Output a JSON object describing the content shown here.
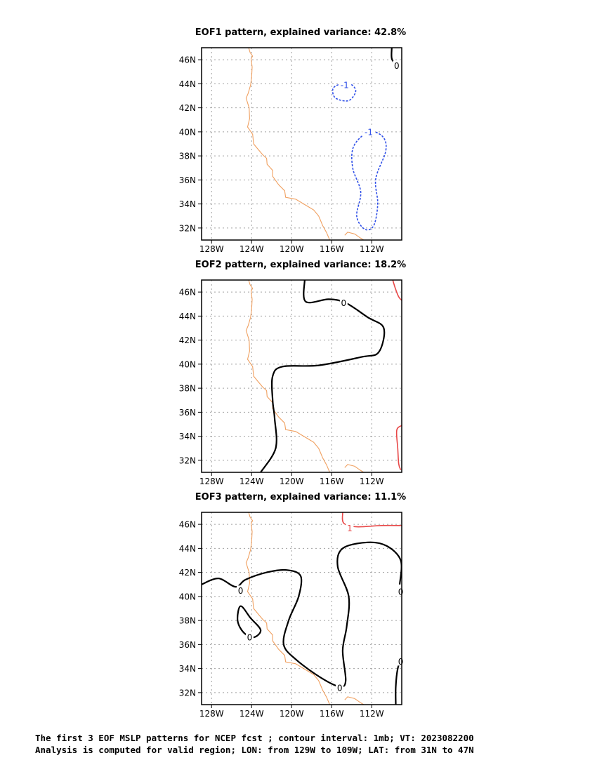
{
  "figure": {
    "caption_lines": [
      "The first 3 EOF MSLP patterns for NCEP fcst ; contour interval: 1mb; VT: 2023082200",
      "Analysis is computed for valid region; LON: from 129W to 109W; LAT: from 31N to 47N"
    ]
  },
  "colors": {
    "coastline": "#f0a060",
    "grid": "#a0a0a0",
    "negative_contour": "#3050e8",
    "positive_contour": "#e84848",
    "zero_contour": "#000000"
  },
  "map": {
    "lon_range": [
      "129W",
      "109W"
    ],
    "lat_range": [
      "31N",
      "47N"
    ],
    "lon_ticks": [
      "128W",
      "124W",
      "120W",
      "116W",
      "112W"
    ],
    "lat_ticks": [
      "46N",
      "44N",
      "42N",
      "40N",
      "38N",
      "36N",
      "34N",
      "32N"
    ],
    "grid": "dotted"
  },
  "panels": [
    {
      "title": "EOF1 pattern, explained variance: 42.8%",
      "contour_labels": [
        {
          "text": "-1",
          "color": "negative",
          "lon": -114.7,
          "lat": 43.9
        },
        {
          "text": "-1",
          "color": "negative",
          "lon": -112.3,
          "lat": 40.0
        },
        {
          "text": "0",
          "color": "zero",
          "lon": -109.5,
          "lat": 45.5
        }
      ]
    },
    {
      "title": "EOF2 pattern, explained variance: 18.2%",
      "contour_labels": [
        {
          "text": "0",
          "color": "zero",
          "lon": -114.8,
          "lat": 45.1
        }
      ]
    },
    {
      "title": "EOF3 pattern, explained variance: 11.1%",
      "contour_labels": [
        {
          "text": "1",
          "color": "positive",
          "lon": -114.2,
          "lat": 45.7
        },
        {
          "text": "0",
          "color": "zero",
          "lon": -125.1,
          "lat": 40.5
        },
        {
          "text": "0",
          "color": "zero",
          "lon": -124.2,
          "lat": 36.6
        },
        {
          "text": "0",
          "color": "zero",
          "lon": -115.2,
          "lat": 32.4
        },
        {
          "text": "0",
          "color": "zero",
          "lon": -109.1,
          "lat": 40.4
        },
        {
          "text": "0",
          "color": "zero",
          "lon": -109.1,
          "lat": 34.6
        }
      ]
    }
  ]
}
